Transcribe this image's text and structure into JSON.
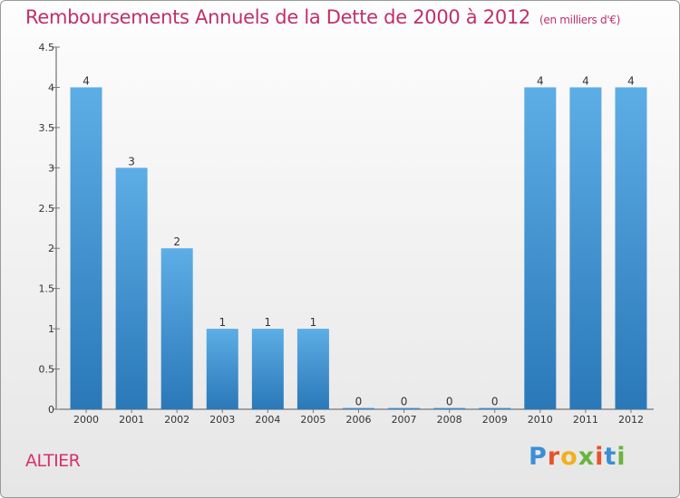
{
  "header": {
    "title": "Remboursements Annuels de la Dette de 2000 à 2012",
    "unit": "(en milliers d'€)"
  },
  "footer": {
    "commune": "ALTIER",
    "logo_letters": [
      "P",
      "r",
      "o",
      "x",
      "i",
      "t",
      "i"
    ],
    "logo_colors": [
      "#3a8fd6",
      "#e8532a",
      "#f2b01e",
      "#6cb33f",
      "#e8532a",
      "#3a8fd6",
      "#6cb33f"
    ]
  },
  "colors": {
    "bar_top": "#5dade6",
    "bar_bottom": "#2a78b8",
    "axis": "#555555",
    "grid_tick": "#777777"
  },
  "chart_data": {
    "type": "bar",
    "title": "Remboursements Annuels de la Dette de 2000 à 2012",
    "subtitle": "(en milliers d'€)",
    "xlabel": "",
    "ylabel": "",
    "categories": [
      "2000",
      "2001",
      "2002",
      "2003",
      "2004",
      "2005",
      "2006",
      "2007",
      "2008",
      "2009",
      "2010",
      "2011",
      "2012"
    ],
    "values": [
      4,
      3,
      2,
      1,
      1,
      1,
      0,
      0,
      0,
      0,
      4,
      4,
      4
    ],
    "data_labels": [
      "4",
      "3",
      "2",
      "1",
      "1",
      "1",
      "0",
      "0",
      "0",
      "0",
      "4",
      "4",
      "4"
    ],
    "ylim": [
      0,
      4.5
    ],
    "yticks": [
      "0",
      "0.5",
      "1",
      "1.5",
      "2",
      "2.5",
      "3",
      "3.5",
      "4",
      "4.5"
    ],
    "ytick_values": [
      0,
      0.5,
      1,
      1.5,
      2,
      2.5,
      3,
      3.5,
      4,
      4.5
    ],
    "grid": false,
    "legend": "none"
  }
}
